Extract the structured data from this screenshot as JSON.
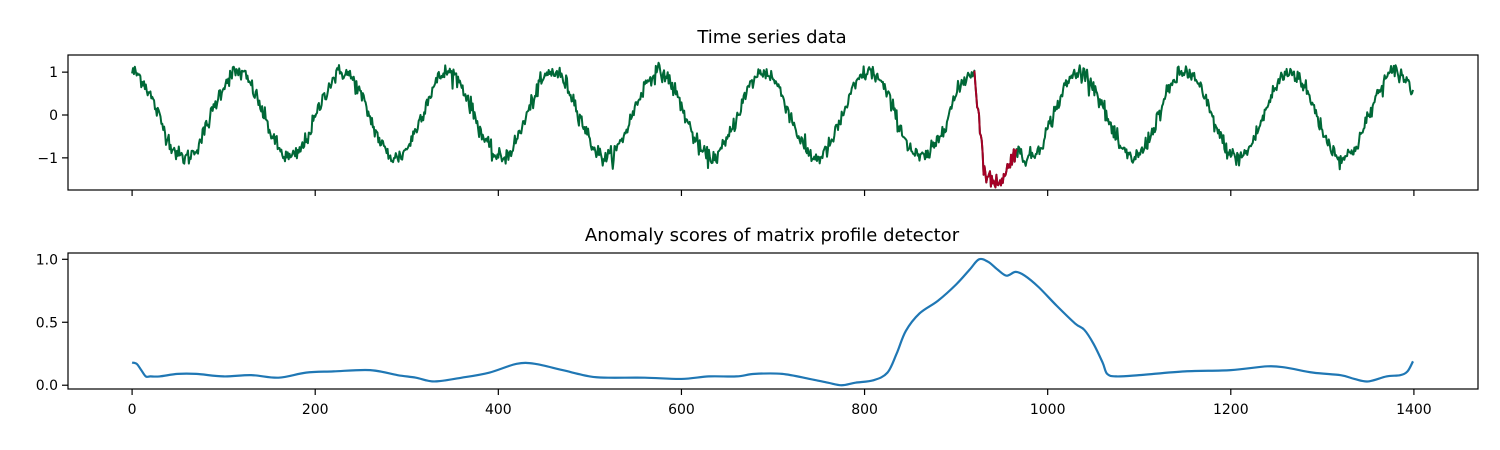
{
  "chart_data": [
    {
      "type": "line",
      "title": "Time series data",
      "xlabel": "",
      "ylabel": "",
      "xlim": [
        -70,
        1470
      ],
      "ylim": [
        -1.75,
        1.4
      ],
      "x_ticks": [
        0,
        200,
        400,
        600,
        800,
        1000,
        1200,
        1400
      ],
      "x_tick_labels_shown": false,
      "y_ticks": [
        1,
        0,
        -1
      ],
      "y_tick_labels": [
        "1",
        "0",
        "−1"
      ],
      "grid": false,
      "legend": "none",
      "signal": {
        "form": "noisy sine wave",
        "length": 1400,
        "period": 115,
        "amplitude": 1.0,
        "start_value": 1.0,
        "noise_std": 0.1
      },
      "series": [
        {
          "color": "#006837",
          "segment": [
            0,
            1399
          ]
        },
        {
          "color": "#a50026",
          "segment": [
            920,
            966
          ],
          "anomaly_min": -1.65
        }
      ]
    },
    {
      "type": "line",
      "title": "Anomaly scores of matrix profile detector",
      "xlabel": "",
      "ylabel": "",
      "xlim": [
        -70,
        1470
      ],
      "ylim": [
        -0.03,
        1.05
      ],
      "x_ticks": [
        0,
        200,
        400,
        600,
        800,
        1000,
        1200,
        1400
      ],
      "x_tick_labels": [
        "0",
        "200",
        "400",
        "600",
        "800",
        "1000",
        "1200",
        "1400"
      ],
      "y_ticks": [
        1.0,
        0.5,
        0.0
      ],
      "y_tick_labels": [
        "1.0",
        "0.5",
        "0.0"
      ],
      "grid": false,
      "legend": "none",
      "series": [
        {
          "color": "#1f77b4",
          "x": [
            0,
            5,
            10,
            15,
            20,
            30,
            50,
            70,
            100,
            130,
            160,
            190,
            220,
            260,
            290,
            310,
            330,
            360,
            390,
            420,
            440,
            470,
            500,
            520,
            560,
            600,
            630,
            660,
            680,
            710,
            740,
            760,
            775,
            790,
            810,
            825,
            835,
            845,
            860,
            880,
            900,
            915,
            925,
            935,
            945,
            955,
            965,
            975,
            990,
            1010,
            1030,
            1040,
            1050,
            1060,
            1065,
            1075,
            1100,
            1150,
            1200,
            1240,
            1260,
            1290,
            1320,
            1335,
            1350,
            1370,
            1385,
            1393,
            1399
          ],
          "values": [
            0.18,
            0.17,
            0.12,
            0.07,
            0.07,
            0.07,
            0.09,
            0.09,
            0.07,
            0.08,
            0.06,
            0.1,
            0.11,
            0.12,
            0.08,
            0.06,
            0.03,
            0.06,
            0.1,
            0.17,
            0.17,
            0.12,
            0.07,
            0.06,
            0.06,
            0.05,
            0.07,
            0.07,
            0.09,
            0.09,
            0.05,
            0.02,
            0.0,
            0.02,
            0.04,
            0.1,
            0.25,
            0.43,
            0.57,
            0.67,
            0.8,
            0.92,
            1.0,
            0.98,
            0.92,
            0.87,
            0.9,
            0.87,
            0.78,
            0.63,
            0.49,
            0.44,
            0.33,
            0.18,
            0.09,
            0.07,
            0.08,
            0.11,
            0.12,
            0.15,
            0.14,
            0.1,
            0.08,
            0.05,
            0.03,
            0.07,
            0.08,
            0.11,
            0.19
          ]
        }
      ]
    }
  ]
}
